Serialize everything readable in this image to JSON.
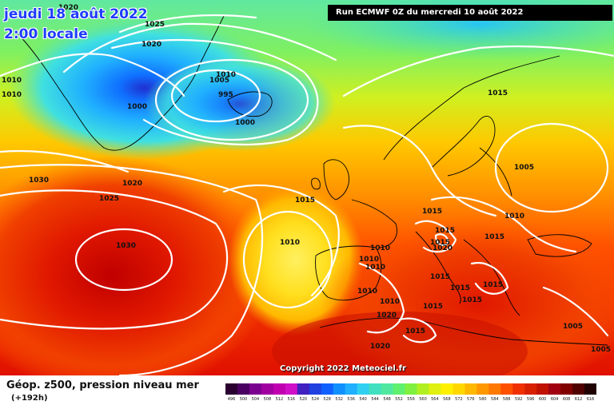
{
  "header": {
    "date_line1": "jeudi 18 août 2022",
    "date_line2": "2:00 locale",
    "run_label": "Run ECMWF 0Z du mercredi 10 août 2022"
  },
  "footer": {
    "title": "Géop. z500, pression niveau mer",
    "subtitle": "(+192h)",
    "copyright": "Copyright 2022 Meteociel.fr"
  },
  "scale": {
    "labels": [
      "496",
      "500",
      "504",
      "508",
      "512",
      "516",
      "520",
      "524",
      "528",
      "532",
      "536",
      "540",
      "544",
      "548",
      "552",
      "556",
      "560",
      "564",
      "568",
      "572",
      "576",
      "580",
      "584",
      "588",
      "592",
      "596",
      "600",
      "604",
      "608",
      "612",
      "616"
    ],
    "colors": [
      "#2a0030",
      "#4a0060",
      "#7a0090",
      "#a000a0",
      "#c000b0",
      "#d010c8",
      "#4020c0",
      "#2040e0",
      "#1060ff",
      "#1090ff",
      "#20b0ff",
      "#30d0f0",
      "#40e0c0",
      "#50e8a0",
      "#60f070",
      "#80f040",
      "#b0f020",
      "#e0f010",
      "#fff000",
      "#ffd800",
      "#ffb800",
      "#ff9800",
      "#ff7800",
      "#ff5000",
      "#f03000",
      "#d82000",
      "#c01000",
      "#a00010",
      "#800000",
      "#500000",
      "#200000"
    ]
  },
  "isobars": {
    "labels": [
      "1020",
      "1025",
      "1020",
      "1010",
      "1010",
      "1005",
      "1010",
      "995",
      "1000",
      "1000",
      "1030",
      "1025",
      "1020",
      "1030",
      "1015",
      "1010",
      "1015",
      "1005",
      "1015",
      "1010",
      "1015",
      "1010",
      "1010",
      "1020",
      "1015",
      "1015",
      "1015",
      "1015",
      "1015",
      "1010",
      "1010",
      "1010",
      "1015",
      "1015",
      "1015",
      "1005",
      "1005",
      "1020",
      "1020"
    ]
  },
  "colors": {
    "low": "#1060ff",
    "mid": "#f0f020",
    "high": "#d80000",
    "isobar": "#ffffff",
    "coast": "#000000"
  }
}
